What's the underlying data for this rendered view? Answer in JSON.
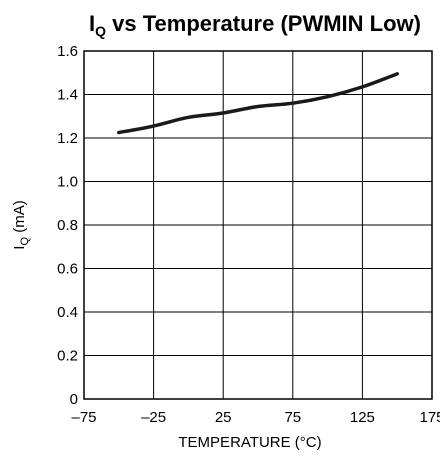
{
  "chart_data": {
    "type": "line",
    "title": {
      "main": "I",
      "subscript": "Q",
      "rest": " vs Temperature (PWMIN Low)"
    },
    "xlabel": "TEMPERATURE (°C)",
    "ylabel": {
      "main": "I",
      "subscript": "Q",
      "rest": " (mA)"
    },
    "xlim": [
      -75,
      175
    ],
    "ylim": [
      0,
      1.6
    ],
    "x_ticks": [
      -75,
      -25,
      25,
      75,
      125,
      175
    ],
    "y_ticks": [
      0,
      0.2,
      0.4,
      0.6,
      0.8,
      1.0,
      1.2,
      1.4,
      1.6
    ],
    "x_tick_labels": [
      "–75",
      "–25",
      "25",
      "75",
      "125",
      "175"
    ],
    "y_tick_labels": [
      "0",
      "0.2",
      "0.4",
      "0.6",
      "0.8",
      "1.0",
      "1.2",
      "1.4",
      "1.6"
    ],
    "grid": true,
    "series": [
      {
        "color": "#1a1a1a",
        "x": [
          -50,
          -25,
          0,
          25,
          50,
          75,
          100,
          125,
          150
        ],
        "y": [
          1.225,
          1.255,
          1.295,
          1.315,
          1.345,
          1.36,
          1.39,
          1.435,
          1.495
        ]
      }
    ]
  }
}
